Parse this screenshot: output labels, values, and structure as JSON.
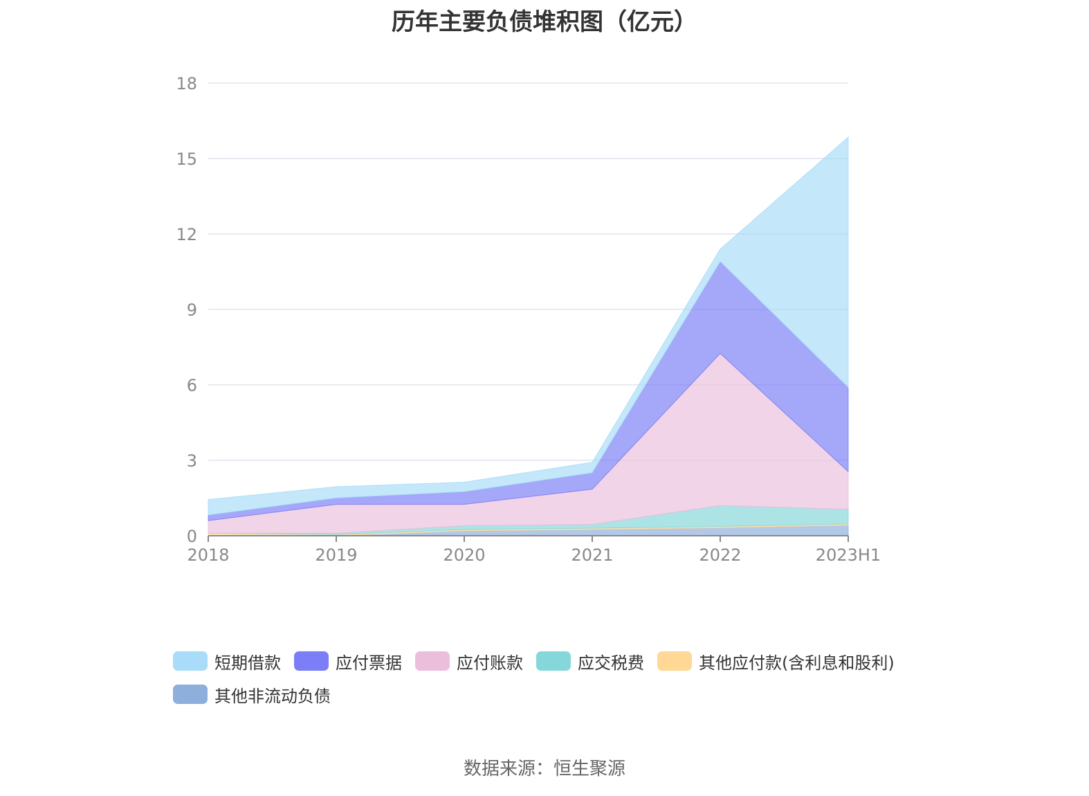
{
  "title": "历年主要负债堆积图（亿元）",
  "source": "数据来源：恒生聚源",
  "chart_data": {
    "type": "area",
    "stacked": true,
    "categories": [
      "2018",
      "2019",
      "2020",
      "2021",
      "2022",
      "2023H1"
    ],
    "ylim": [
      0,
      18
    ],
    "yticks": [
      "0",
      "3",
      "6",
      "9",
      "12",
      "15",
      "18"
    ],
    "grid": true,
    "legend_position": "bottom",
    "series": [
      {
        "name": "其他非流动负债",
        "color": "#8eaedc",
        "values": [
          0,
          0,
          0.2,
          0.25,
          0.32,
          0.42
        ]
      },
      {
        "name": "其他应付款(含利息和股利)",
        "color": "#ffd896",
        "values": [
          0.1,
          0.05,
          0.05,
          0.05,
          0.05,
          0.05
        ]
      },
      {
        "name": "应交税费",
        "color": "#85d7da",
        "values": [
          0,
          0.05,
          0.15,
          0.15,
          0.83,
          0.58
        ]
      },
      {
        "name": "应付账款",
        "color": "#ebbfdb",
        "values": [
          0.5,
          1.15,
          0.85,
          1.4,
          6.05,
          1.5
        ]
      },
      {
        "name": "应付票据",
        "color": "#7b7ef6",
        "values": [
          0.22,
          0.25,
          0.5,
          0.65,
          3.65,
          3.35
        ]
      },
      {
        "name": "短期借款",
        "color": "#a8dcf8",
        "values": [
          0.62,
          0.45,
          0.38,
          0.42,
          0.5,
          9.95
        ]
      }
    ]
  }
}
